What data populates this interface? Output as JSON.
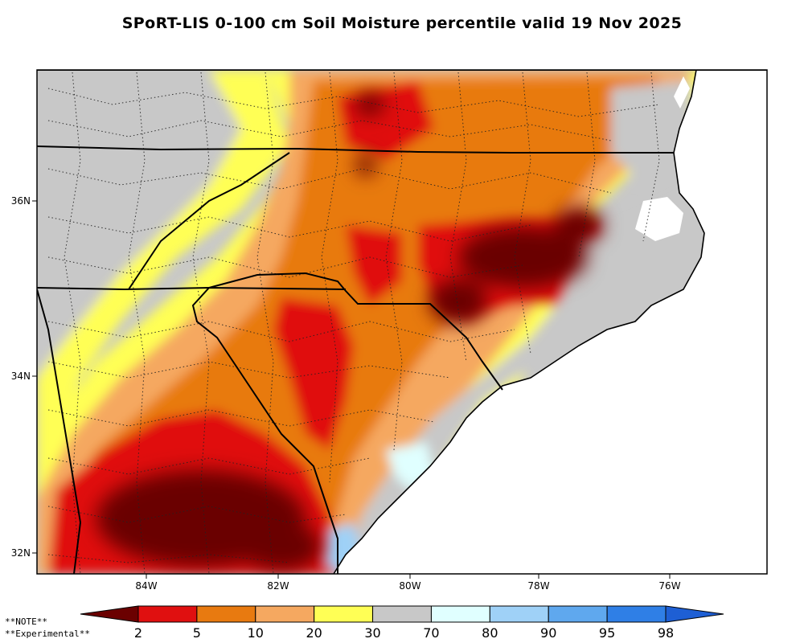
{
  "title": "SPoRT-LIS 0-100 cm Soil Moisture percentile valid 19 Nov 2025",
  "latitude_labels": [
    "36N",
    "34N",
    "32N"
  ],
  "longitude_labels": [
    "84W",
    "82W",
    "80W",
    "78W",
    "76W"
  ],
  "colorbar": {
    "colors": [
      "#6b0000",
      "#e01010",
      "#e87a10",
      "#f5a860",
      "#ffff55",
      "#c8c8c8",
      "#e0ffff",
      "#9fd1f7",
      "#5fa8ee",
      "#2f7fe6",
      "#1e5fd4"
    ],
    "labels": [
      "2",
      "5",
      "10",
      "20",
      "30",
      "70",
      "80",
      "90",
      "95",
      "98"
    ]
  },
  "notes": [
    "**NOTE**",
    "**Experimental**"
  ],
  "map_colors": {
    "frame": "#000000",
    "ocean": "#ffffff",
    "state_border": "#000000",
    "county_line": "#222222"
  }
}
